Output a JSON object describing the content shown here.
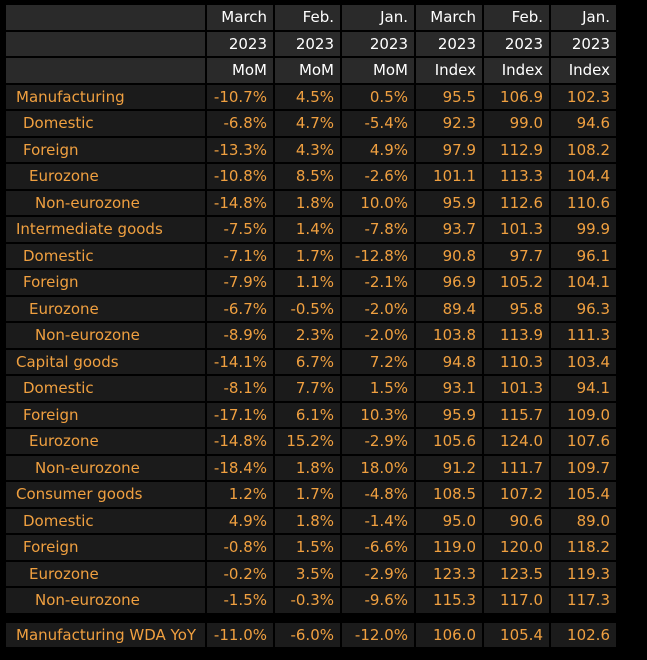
{
  "chart_data": {
    "type": "table",
    "header_rows": [
      [
        "March",
        "Feb.",
        "Jan.",
        "March",
        "Feb.",
        "Jan."
      ],
      [
        "2023",
        "2023",
        "2023",
        "2023",
        "2023",
        "2023"
      ],
      [
        "MoM",
        "MoM",
        "MoM",
        "Index",
        "Index",
        "Index"
      ]
    ],
    "rows": [
      {
        "label": "Manufacturing",
        "level": 0,
        "values": [
          "-10.7%",
          "4.5%",
          "0.5%",
          "95.5",
          "106.9",
          "102.3"
        ]
      },
      {
        "label": "Domestic",
        "level": 1,
        "values": [
          "-6.8%",
          "4.7%",
          "-5.4%",
          "92.3",
          "99.0",
          "94.6"
        ]
      },
      {
        "label": "Foreign",
        "level": 1,
        "values": [
          "-13.3%",
          "4.3%",
          "4.9%",
          "97.9",
          "112.9",
          "108.2"
        ]
      },
      {
        "label": "Eurozone",
        "level": 2,
        "values": [
          "-10.8%",
          "8.5%",
          "-2.6%",
          "101.1",
          "113.3",
          "104.4"
        ]
      },
      {
        "label": "Non-eurozone",
        "level": 3,
        "values": [
          "-14.8%",
          "1.8%",
          "10.0%",
          "95.9",
          "112.6",
          "110.6"
        ]
      },
      {
        "label": "Intermediate goods",
        "level": 0,
        "values": [
          "-7.5%",
          "1.4%",
          "-7.8%",
          "93.7",
          "101.3",
          "99.9"
        ]
      },
      {
        "label": "Domestic",
        "level": 1,
        "values": [
          "-7.1%",
          "1.7%",
          "-12.8%",
          "90.8",
          "97.7",
          "96.1"
        ]
      },
      {
        "label": "Foreign",
        "level": 1,
        "values": [
          "-7.9%",
          "1.1%",
          "-2.1%",
          "96.9",
          "105.2",
          "104.1"
        ]
      },
      {
        "label": "Eurozone",
        "level": 2,
        "values": [
          "-6.7%",
          "-0.5%",
          "-2.0%",
          "89.4",
          "95.8",
          "96.3"
        ]
      },
      {
        "label": "Non-eurozone",
        "level": 3,
        "values": [
          "-8.9%",
          "2.3%",
          "-2.0%",
          "103.8",
          "113.9",
          "111.3"
        ]
      },
      {
        "label": "Capital goods",
        "level": 0,
        "values": [
          "-14.1%",
          "6.7%",
          "7.2%",
          "94.8",
          "110.3",
          "103.4"
        ]
      },
      {
        "label": "Domestic",
        "level": 1,
        "values": [
          "-8.1%",
          "7.7%",
          "1.5%",
          "93.1",
          "101.3",
          "94.1"
        ]
      },
      {
        "label": "Foreign",
        "level": 1,
        "values": [
          "-17.1%",
          "6.1%",
          "10.3%",
          "95.9",
          "115.7",
          "109.0"
        ]
      },
      {
        "label": "Eurozone",
        "level": 2,
        "values": [
          "-14.8%",
          "15.2%",
          "-2.9%",
          "105.6",
          "124.0",
          "107.6"
        ]
      },
      {
        "label": "Non-eurozone",
        "level": 3,
        "values": [
          "-18.4%",
          "1.8%",
          "18.0%",
          "91.2",
          "111.7",
          "109.7"
        ]
      },
      {
        "label": "Consumer goods",
        "level": 0,
        "values": [
          "1.2%",
          "1.7%",
          "-4.8%",
          "108.5",
          "107.2",
          "105.4"
        ]
      },
      {
        "label": "Domestic",
        "level": 1,
        "values": [
          "4.9%",
          "1.8%",
          "-1.4%",
          "95.0",
          "90.6",
          "89.0"
        ]
      },
      {
        "label": "Foreign",
        "level": 1,
        "values": [
          "-0.8%",
          "1.5%",
          "-6.6%",
          "119.0",
          "120.0",
          "118.2"
        ]
      },
      {
        "label": "Eurozone",
        "level": 2,
        "values": [
          "-0.2%",
          "3.5%",
          "-2.9%",
          "123.3",
          "123.5",
          "119.3"
        ]
      },
      {
        "label": "Non-eurozone",
        "level": 3,
        "values": [
          "-1.5%",
          "-0.3%",
          "-9.6%",
          "115.3",
          "117.0",
          "117.3"
        ]
      }
    ],
    "footer_row": {
      "label": "Manufacturing WDA YoY",
      "level": 0,
      "values": [
        "-11.0%",
        "-6.0%",
        "-12.0%",
        "106.0",
        "105.4",
        "102.6"
      ]
    }
  },
  "colors": {
    "background": "#000000",
    "cell_background": "#1b1b1b",
    "header_background": "#2a2a2a",
    "header_text": "#ffffff",
    "value_text": "#f0a040"
  }
}
